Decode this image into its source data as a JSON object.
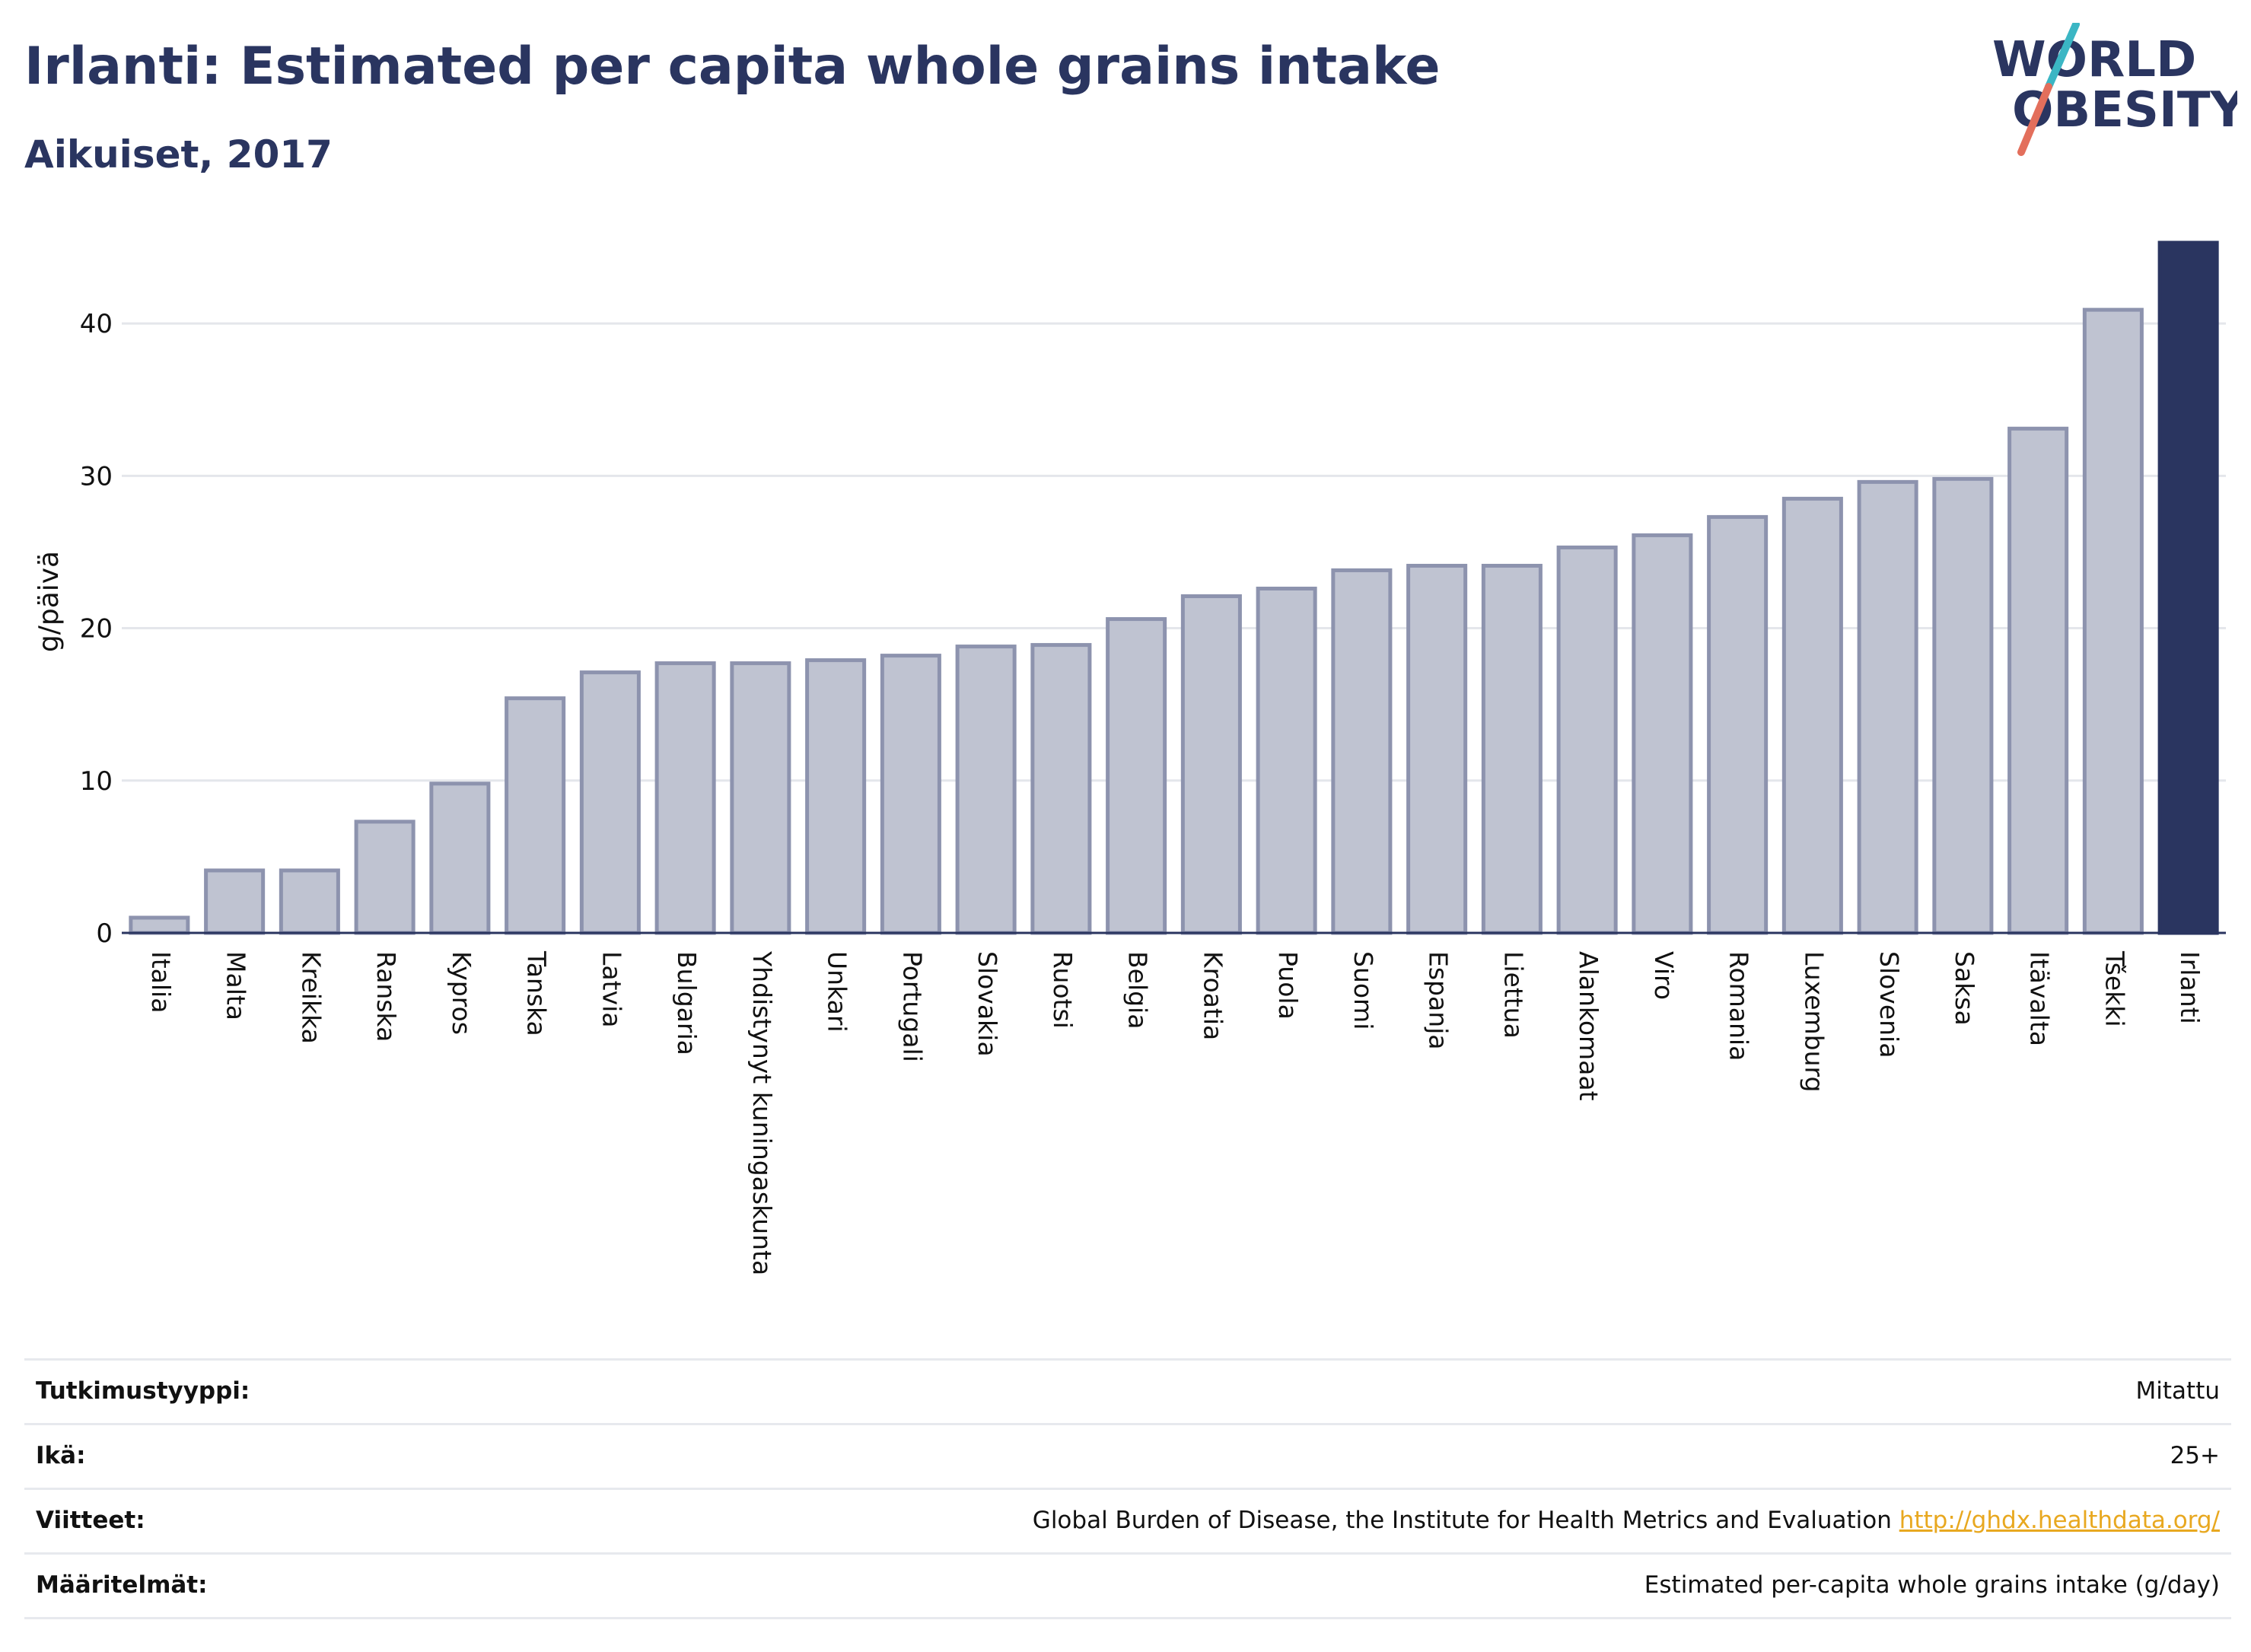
{
  "header": {
    "title": "Irlanti: Estimated per capita whole grains intake",
    "subtitle": "Aikuiset, 2017"
  },
  "logo": {
    "line1": "WORLD",
    "line2": "OBESITY",
    "accent_teal": "#3bb6c4",
    "accent_coral": "#e36f5c"
  },
  "colors": {
    "bar_fill": "#bfc3d1",
    "bar_stroke": "#8d93ae",
    "highlight_fill": "#2a3560",
    "title": "#2a3560",
    "grid": "#e4e6eb",
    "link": "#e8a820"
  },
  "chart_data": {
    "type": "bar",
    "title": "Irlanti: Estimated per capita whole grains intake",
    "subtitle": "Aikuiset, 2017",
    "ylabel": "g/päivä",
    "xlabel": "",
    "ylim": [
      0,
      45.5
    ],
    "yticks": [
      0,
      10,
      20,
      30,
      40
    ],
    "grid": true,
    "highlight": "Irlanti",
    "categories": [
      "Italia",
      "Malta",
      "Kreikka",
      "Ranska",
      "Kypros",
      "Tanska",
      "Latvia",
      "Bulgaria",
      "Yhdistynyt kuningaskunta",
      "Unkari",
      "Portugali",
      "Slovakia",
      "Ruotsi",
      "Belgia",
      "Kroatia",
      "Puola",
      "Suomi",
      "Espanja",
      "Liettua",
      "Alankomaat",
      "Viro",
      "Romania",
      "Luxemburg",
      "Slovenia",
      "Saksa",
      "Itävalta",
      "Tšekki",
      "Irlanti"
    ],
    "values": [
      1.0,
      4.1,
      4.1,
      7.3,
      9.8,
      15.4,
      17.1,
      17.7,
      17.7,
      17.9,
      18.2,
      18.8,
      18.9,
      20.6,
      22.1,
      22.6,
      23.8,
      24.1,
      24.1,
      25.3,
      26.1,
      27.3,
      28.5,
      29.6,
      29.8,
      33.1,
      40.9,
      45.3
    ]
  },
  "info": [
    {
      "label": "Tutkimustyyppi:",
      "value": "Mitattu"
    },
    {
      "label": "Ikä:",
      "value": "25+"
    },
    {
      "label": "Viitteet:",
      "value": "Global Burden of Disease, the Institute for Health Metrics and Evaluation",
      "link": "http://ghdx.healthdata.org/"
    },
    {
      "label": "Määritelmät:",
      "value": "Estimated per-capita whole grains intake (g/day)"
    }
  ]
}
